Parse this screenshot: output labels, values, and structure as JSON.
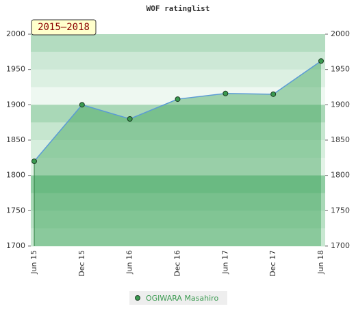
{
  "chart_data": {
    "type": "line",
    "title": "WOF ratinglist",
    "annotation": "2015–2018",
    "categories": [
      "Jun 15",
      "Dec 15",
      "Jun 16",
      "Dec 16",
      "Jun 17",
      "Dec 17",
      "Jun 18"
    ],
    "series": [
      {
        "name": "OGIWARA Masahiro",
        "color": "#5b9bd5",
        "values": [
          1820,
          1900,
          1880,
          1908,
          1916,
          1915,
          1962
        ]
      }
    ],
    "ylim": [
      1700,
      2000
    ],
    "yticks": [
      1700,
      1750,
      1800,
      1850,
      1900,
      1950,
      2000
    ],
    "y2lim": [
      1700,
      2000
    ],
    "y2ticks": [
      1700,
      1750,
      1800,
      1850,
      1900,
      1950,
      2000
    ],
    "grid": false
  }
}
